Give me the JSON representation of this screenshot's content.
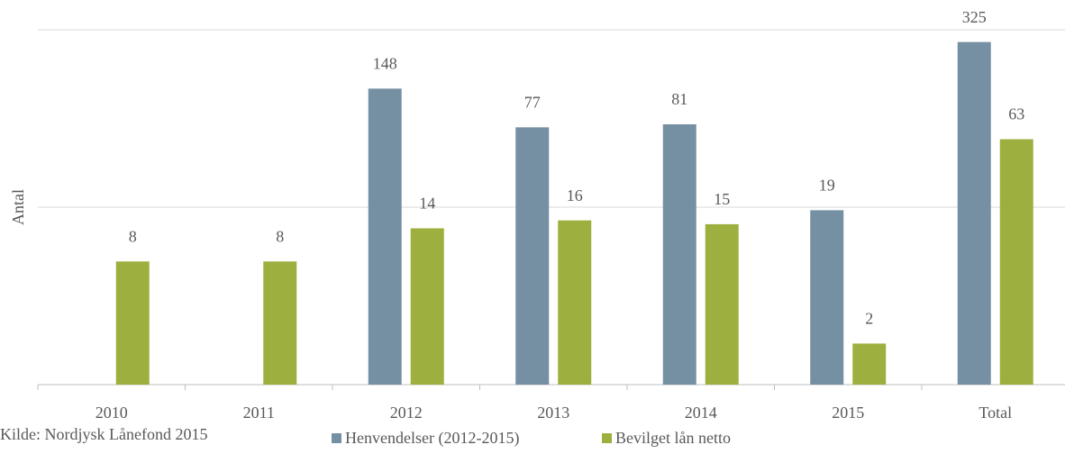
{
  "chart_data": {
    "type": "bar",
    "categories": [
      "2010",
      "2011",
      "2012",
      "2013",
      "2014",
      "2015",
      "Total"
    ],
    "series": [
      {
        "name": "Henvendelser (2012-2015)",
        "color": "#7590a3",
        "values": [
          null,
          null,
          148,
          77,
          81,
          19,
          325
        ]
      },
      {
        "name": "Bevilget lån netto",
        "color": "#9db03f",
        "values": [
          8,
          8,
          14,
          16,
          15,
          2,
          63
        ]
      }
    ],
    "y_label": "Antal",
    "source": "Kilde: Nordjysk Lånefond 2015",
    "log_scale": true,
    "ylim": [
      1,
      400
    ],
    "yticks": [
      1,
      20,
      400
    ],
    "grid": true,
    "legend": "bottom"
  }
}
